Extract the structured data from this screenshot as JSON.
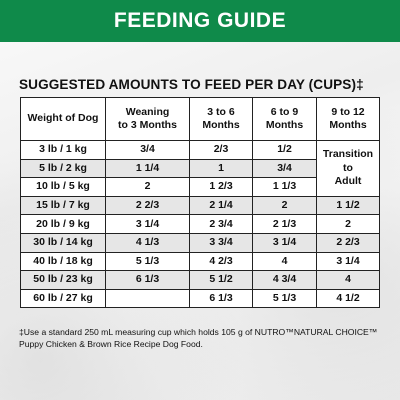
{
  "banner": {
    "title": "FEEDING GUIDE"
  },
  "subtitle": "SUGGESTED AMOUNTS TO FEED PER DAY (CUPS)‡",
  "table": {
    "headers": [
      "Weight of Dog",
      "Weaning\nto 3 Months",
      "3 to 6\nMonths",
      "6 to 9\nMonths",
      "9 to 12\nMonths"
    ],
    "transition_note": "Transition to\nAdult",
    "rows": [
      [
        "3 lb / 1 kg",
        "3/4",
        "2/3",
        "1/2"
      ],
      [
        "5 lb / 2 kg",
        "1 1/4",
        "1",
        "3/4"
      ],
      [
        "10 lb / 5 kg",
        "2",
        "1 2/3",
        "1 1/3"
      ],
      [
        "15 lb / 7 kg",
        "2 2/3",
        "2 1/4",
        "2",
        "1 1/2"
      ],
      [
        "20 lb / 9 kg",
        "3 1/4",
        "2 3/4",
        "2 1/3",
        "2"
      ],
      [
        "30 lb / 14 kg",
        "4 1/3",
        "3 3/4",
        "3 1/4",
        "2 2/3"
      ],
      [
        "40 lb / 18 kg",
        "5 1/3",
        "4 2/3",
        "4",
        "3 1/4"
      ],
      [
        "50 lb / 23 kg",
        "6 1/3",
        "5 1/2",
        "4 3/4",
        "4"
      ],
      [
        "60 lb / 27 kg",
        "",
        "6 1/3",
        "5 1/3",
        "4 1/2"
      ]
    ]
  },
  "footnote": "‡Use a standard 250 mL measuring cup which holds 105 g of NUTRO™NATURAL CHOICE™ Puppy Chicken & Brown Rice Recipe Dog Food."
}
